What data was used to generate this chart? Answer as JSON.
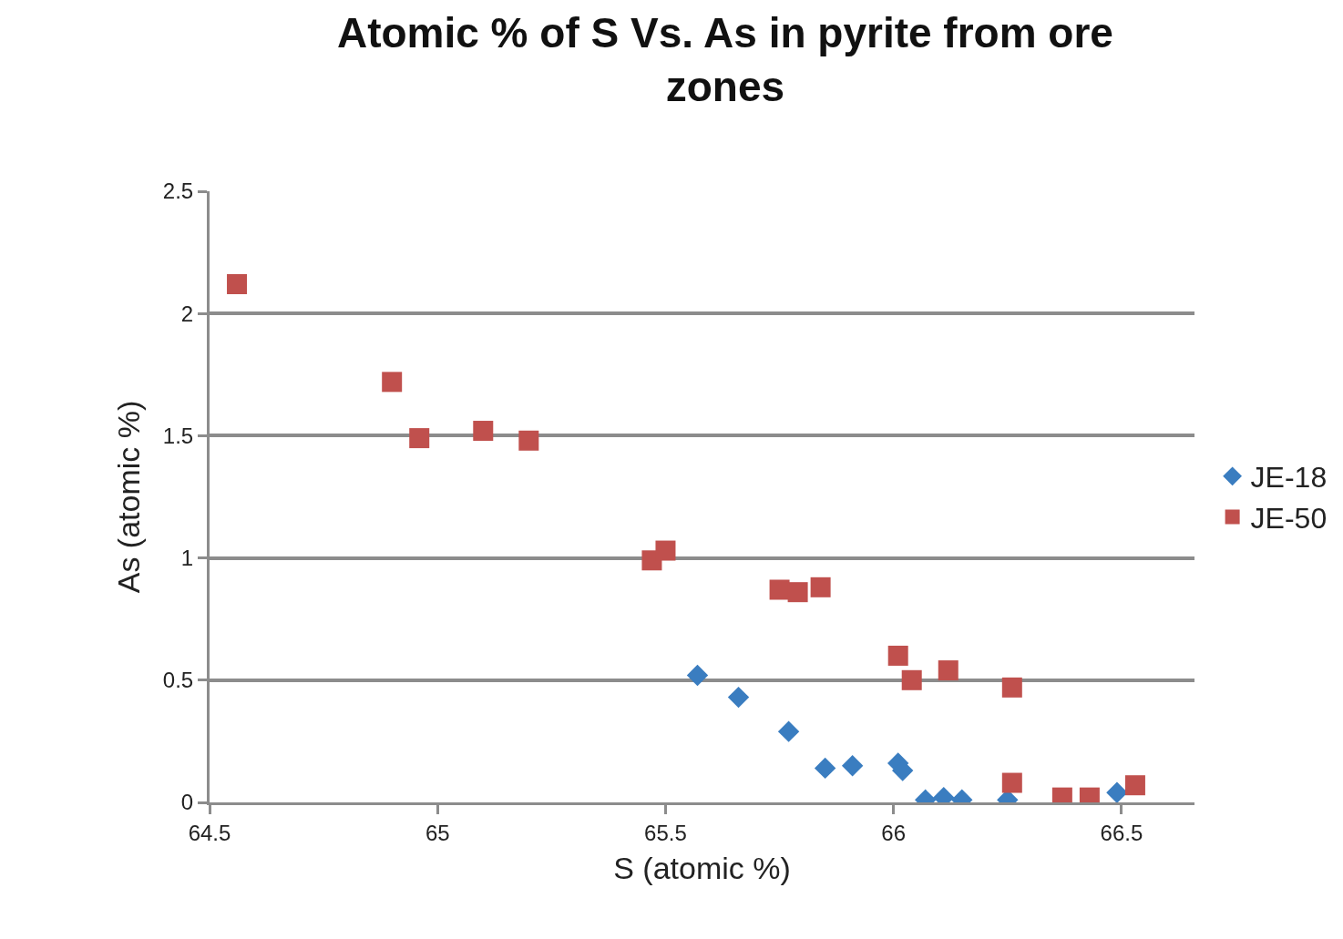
{
  "chart_data": {
    "type": "scatter",
    "title": "Atomic % of S Vs. As in pyrite from ore zones",
    "xlabel": "S (atomic %)",
    "ylabel": "As (atomic %)",
    "xlim": [
      64.5,
      66.66
    ],
    "xticks": [
      64.5,
      65,
      65.5,
      66,
      66.5
    ],
    "ylim": [
      0,
      2.5
    ],
    "yticks": [
      0,
      0.5,
      1,
      1.5,
      2,
      2.5
    ],
    "grid": "y",
    "legend": "right",
    "series": [
      {
        "name": "JE-18",
        "color": "#3a7dc0",
        "marker": "diamond",
        "x": [
          65.57,
          65.66,
          65.77,
          65.85,
          65.91,
          66.01,
          66.02,
          66.07,
          66.11,
          66.15,
          66.25,
          66.49
        ],
        "values": [
          0.52,
          0.43,
          0.29,
          0.14,
          0.15,
          0.16,
          0.13,
          0.01,
          0.02,
          0.01,
          0.01,
          0.04
        ]
      },
      {
        "name": "JE-50",
        "color": "#c0504d",
        "marker": "square",
        "x": [
          64.56,
          64.9,
          64.96,
          65.1,
          65.2,
          65.47,
          65.5,
          65.75,
          65.79,
          65.84,
          66.01,
          66.04,
          66.12,
          66.26,
          66.26,
          66.37,
          66.43,
          66.53
        ],
        "values": [
          2.12,
          1.72,
          1.49,
          1.52,
          1.48,
          0.99,
          1.03,
          0.87,
          0.86,
          0.88,
          0.6,
          0.5,
          0.54,
          0.47,
          0.08,
          0.02,
          0.02,
          0.07
        ]
      }
    ]
  }
}
